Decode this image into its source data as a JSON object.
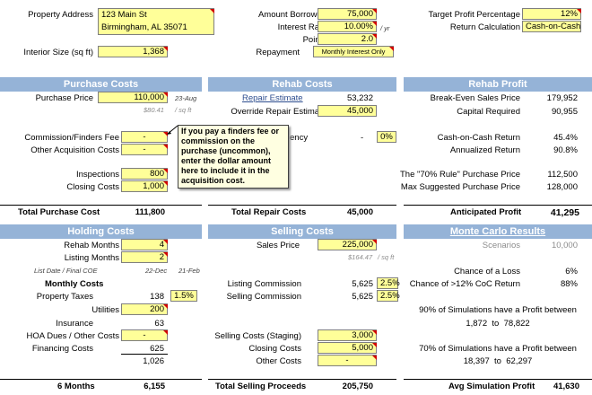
{
  "top": {
    "address_label": "Property Address",
    "address_line1": "123 Main St",
    "address_line2": "Birmingham, AL 35071",
    "interior_label": "Interior Size (sq ft)",
    "interior_value": "1,368",
    "amount_borrowed_label": "Amount Borrowed",
    "amount_borrowed_value": "75,000",
    "interest_rate_label": "Interest Rate",
    "interest_rate_value": "10.00%",
    "interest_rate_unit": "/ yr",
    "points_label": "Points",
    "points_value": "2.0",
    "repayment_label": "Repayment",
    "repayment_value": "Monthly Interest Only",
    "target_profit_label": "Target Profit Percentage",
    "target_profit_value": "12%",
    "return_calc_label": "Return Calculation",
    "return_calc_value": "Cash-on-Cash"
  },
  "purchase": {
    "header": "Purchase Costs",
    "price_label": "Purchase Price",
    "price_value": "110,000",
    "price_date": "23-Aug",
    "price_per_sqft": "$80.41",
    "price_per_sqft_unit": "/ sq ft",
    "commission_label": "Commission/Finders Fee",
    "commission_value": "-",
    "other_label": "Other Acquisition Costs",
    "other_value": "-",
    "inspections_label": "Inspections",
    "inspections_value": "800",
    "closing_label": "Closing Costs",
    "closing_value": "1,000",
    "total_label": "Total Purchase Cost",
    "total_value": "111,800",
    "tooltip": "If you pay a finders fee or commission on the purchase (uncommon), enter the dollar amount here to include it in the acquisition cost."
  },
  "rehab": {
    "header": "Rehab Costs",
    "estimate_label": "Repair Estimate",
    "estimate_value": "53,232",
    "override_label": "Override Repair Estimate",
    "override_value": "45,000",
    "contingency_label_partial": "ency",
    "contingency_amount": "-",
    "contingency_pct": "0%",
    "total_label": "Total Repair Costs",
    "total_value": "45,000"
  },
  "rehab_profit": {
    "header": "Rehab Profit",
    "breakeven_label": "Break-Even Sales Price",
    "breakeven_value": "179,952",
    "capital_label": "Capital Required",
    "capital_value": "90,955",
    "coc_label": "Cash-on-Cash Return",
    "coc_value": "45.4%",
    "annualized_label": "Annualized Return",
    "annualized_value": "90.8%",
    "rule70_label": "The \"70% Rule\" Purchase Price",
    "rule70_value": "112,500",
    "max_label": "Max Suggested Purchase Price",
    "max_value": "128,000",
    "total_label": "Anticipated Profit",
    "total_value": "41,295"
  },
  "holding": {
    "header": "Holding Costs",
    "rehab_months_label": "Rehab Months",
    "rehab_months_value": "4",
    "listing_months_label": "Listing Months",
    "listing_months_value": "2",
    "dates_label": "List Date / Final COE",
    "list_date": "22-Dec",
    "final_coe": "21-Feb",
    "monthly_header": "Monthly Costs",
    "taxes_label": "Property Taxes",
    "taxes_value": "138",
    "taxes_pct": "1.5%",
    "utilities_label": "Utilities",
    "utilities_value": "200",
    "insurance_label": "Insurance",
    "insurance_value": "63",
    "hoa_label": "HOA Dues / Other Costs",
    "hoa_value": "-",
    "financing_label": "Financing Costs",
    "financing_value": "625",
    "monthly_total": "1,026",
    "total_label": "6 Months",
    "total_value": "6,155"
  },
  "selling": {
    "header": "Selling Costs",
    "price_label": "Sales Price",
    "price_value": "225,000",
    "per_sqft": "$164.47",
    "per_sqft_unit": "/ sq ft",
    "listing_comm_label": "Listing Commission",
    "listing_comm_value": "5,625",
    "listing_comm_pct": "2.5%",
    "selling_comm_label": "Selling Commission",
    "selling_comm_value": "5,625",
    "selling_comm_pct": "2.5%",
    "staging_label": "Selling Costs (Staging)",
    "staging_value": "3,000",
    "closing_label": "Closing Costs",
    "closing_value": "5,000",
    "other_label": "Other Costs",
    "other_value": "-",
    "total_label": "Total Selling Proceeds",
    "total_value": "205,750"
  },
  "monte_carlo": {
    "header": "Monte Carlo Results",
    "scenarios_label": "Scenarios",
    "scenarios_value": "10,000",
    "loss_label": "Chance of a Loss",
    "loss_value": "6%",
    "coc_label": "Chance of >12% CoC Return",
    "coc_value": "88%",
    "p90_text": "90% of Simulations have a Profit between",
    "p90_low": "1,872",
    "p90_to": "to",
    "p90_high": "78,822",
    "p70_text": "70% of Simulations have a Profit between",
    "p70_low": "18,397",
    "p70_to": "to",
    "p70_high": "62,297",
    "total_label": "Avg Simulation Profit",
    "total_value": "41,630"
  },
  "colors": {
    "header_blue": "#95b3d7",
    "input_yellow": "#ffff99",
    "comment_red": "#d00000"
  }
}
